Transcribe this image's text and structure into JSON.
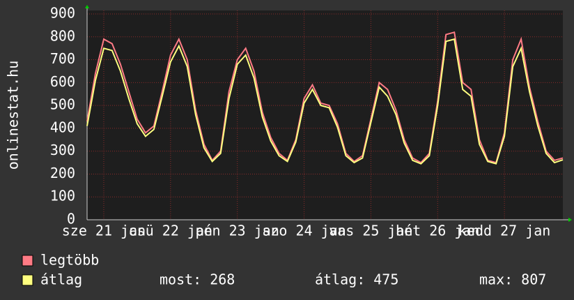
{
  "chart_data": {
    "type": "line",
    "y_label": "onlinestat.hu",
    "x": [
      0,
      3,
      6,
      9,
      12,
      15,
      18,
      21,
      24,
      27,
      30,
      33,
      36,
      39,
      42,
      45,
      48,
      51,
      54,
      57,
      60,
      63,
      66,
      69,
      72,
      75,
      78,
      81,
      84,
      87,
      90,
      93,
      96,
      99,
      102,
      105,
      108,
      111,
      114,
      117,
      120,
      123,
      126,
      129,
      132,
      135,
      138,
      141,
      144,
      147,
      150,
      153,
      156,
      159,
      162,
      165,
      168,
      171
    ],
    "xlim": [
      0,
      171
    ],
    "xticks": [
      {
        "value": 6,
        "label": "sze 21 jan"
      },
      {
        "value": 30,
        "label": "csü 22 jan"
      },
      {
        "value": 54,
        "label": "pén 23 jan"
      },
      {
        "value": 78,
        "label": "szo 24 jan"
      },
      {
        "value": 102,
        "label": "vas 25 jan"
      },
      {
        "value": 126,
        "label": "hét 26 jan"
      },
      {
        "value": 150,
        "label": "kedd 27 jan"
      }
    ],
    "ylim": [
      0,
      900
    ],
    "yticks": [
      0,
      100,
      200,
      300,
      400,
      500,
      600,
      700,
      800,
      900
    ],
    "grid": true,
    "series": [
      {
        "name": "legtöbb",
        "color": "#ff7b85",
        "values": [
          430,
          640,
          790,
          770,
          680,
          560,
          440,
          380,
          410,
          560,
          720,
          790,
          700,
          480,
          330,
          260,
          300,
          560,
          700,
          750,
          650,
          470,
          360,
          290,
          260,
          350,
          530,
          590,
          510,
          500,
          420,
          290,
          255,
          280,
          440,
          600,
          570,
          480,
          350,
          270,
          250,
          290,
          520,
          810,
          820,
          600,
          570,
          350,
          260,
          250,
          380,
          700,
          790,
          580,
          430,
          300,
          260,
          270
        ]
      },
      {
        "name": "átlag",
        "color": "#ffff80",
        "values": [
          410,
          610,
          750,
          740,
          650,
          530,
          420,
          365,
          395,
          540,
          690,
          760,
          670,
          460,
          315,
          255,
          290,
          530,
          680,
          720,
          620,
          450,
          345,
          280,
          255,
          340,
          510,
          570,
          500,
          490,
          405,
          280,
          250,
          270,
          425,
          580,
          540,
          460,
          335,
          260,
          245,
          280,
          500,
          780,
          790,
          570,
          540,
          330,
          255,
          245,
          365,
          670,
          750,
          560,
          410,
          290,
          250,
          262
        ]
      }
    ],
    "stats": [
      {
        "label": "most:",
        "value": 268
      },
      {
        "label": "átlag:",
        "value": 475
      },
      {
        "label": "max:",
        "value": 807
      }
    ]
  }
}
